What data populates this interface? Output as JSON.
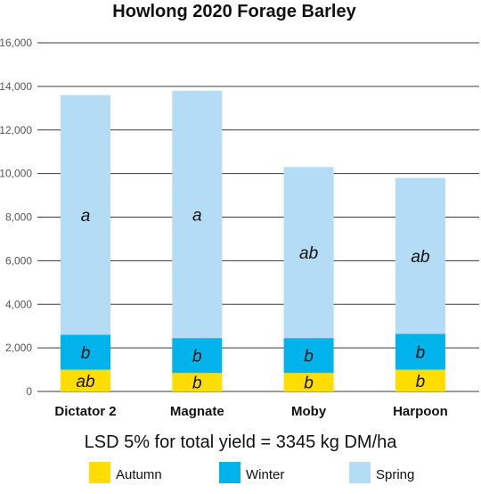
{
  "chart_data": {
    "type": "bar",
    "stacked": true,
    "title": "Howlong 2020 Forage Barley",
    "categories": [
      "Dictator 2",
      "Magnate",
      "Moby",
      "Harpoon"
    ],
    "series": [
      {
        "name": "Autumn",
        "color": "#FFDD00",
        "values": [
          1000,
          850,
          850,
          1000
        ],
        "labels": [
          "ab",
          "b",
          "b",
          "b"
        ]
      },
      {
        "name": "Winter",
        "color": "#00B4EB",
        "values": [
          1600,
          1600,
          1600,
          1650
        ],
        "labels": [
          "b",
          "b",
          "b",
          "b"
        ]
      },
      {
        "name": "Spring",
        "color": "#B5DCF5",
        "values": [
          11000,
          11350,
          7850,
          7150
        ],
        "labels": [
          "a",
          "a",
          "ab",
          "ab"
        ]
      }
    ],
    "ylim": [
      0,
      16000
    ],
    "yticks": [
      "0",
      "2,000",
      "4,000",
      "6,000",
      "8,000",
      "10,000",
      "12,000",
      "14,000",
      "16,000"
    ],
    "grid": true,
    "legend_position": "bottom",
    "annotation": "LSD 5% for total yield = 3345 kg DM/ha"
  }
}
